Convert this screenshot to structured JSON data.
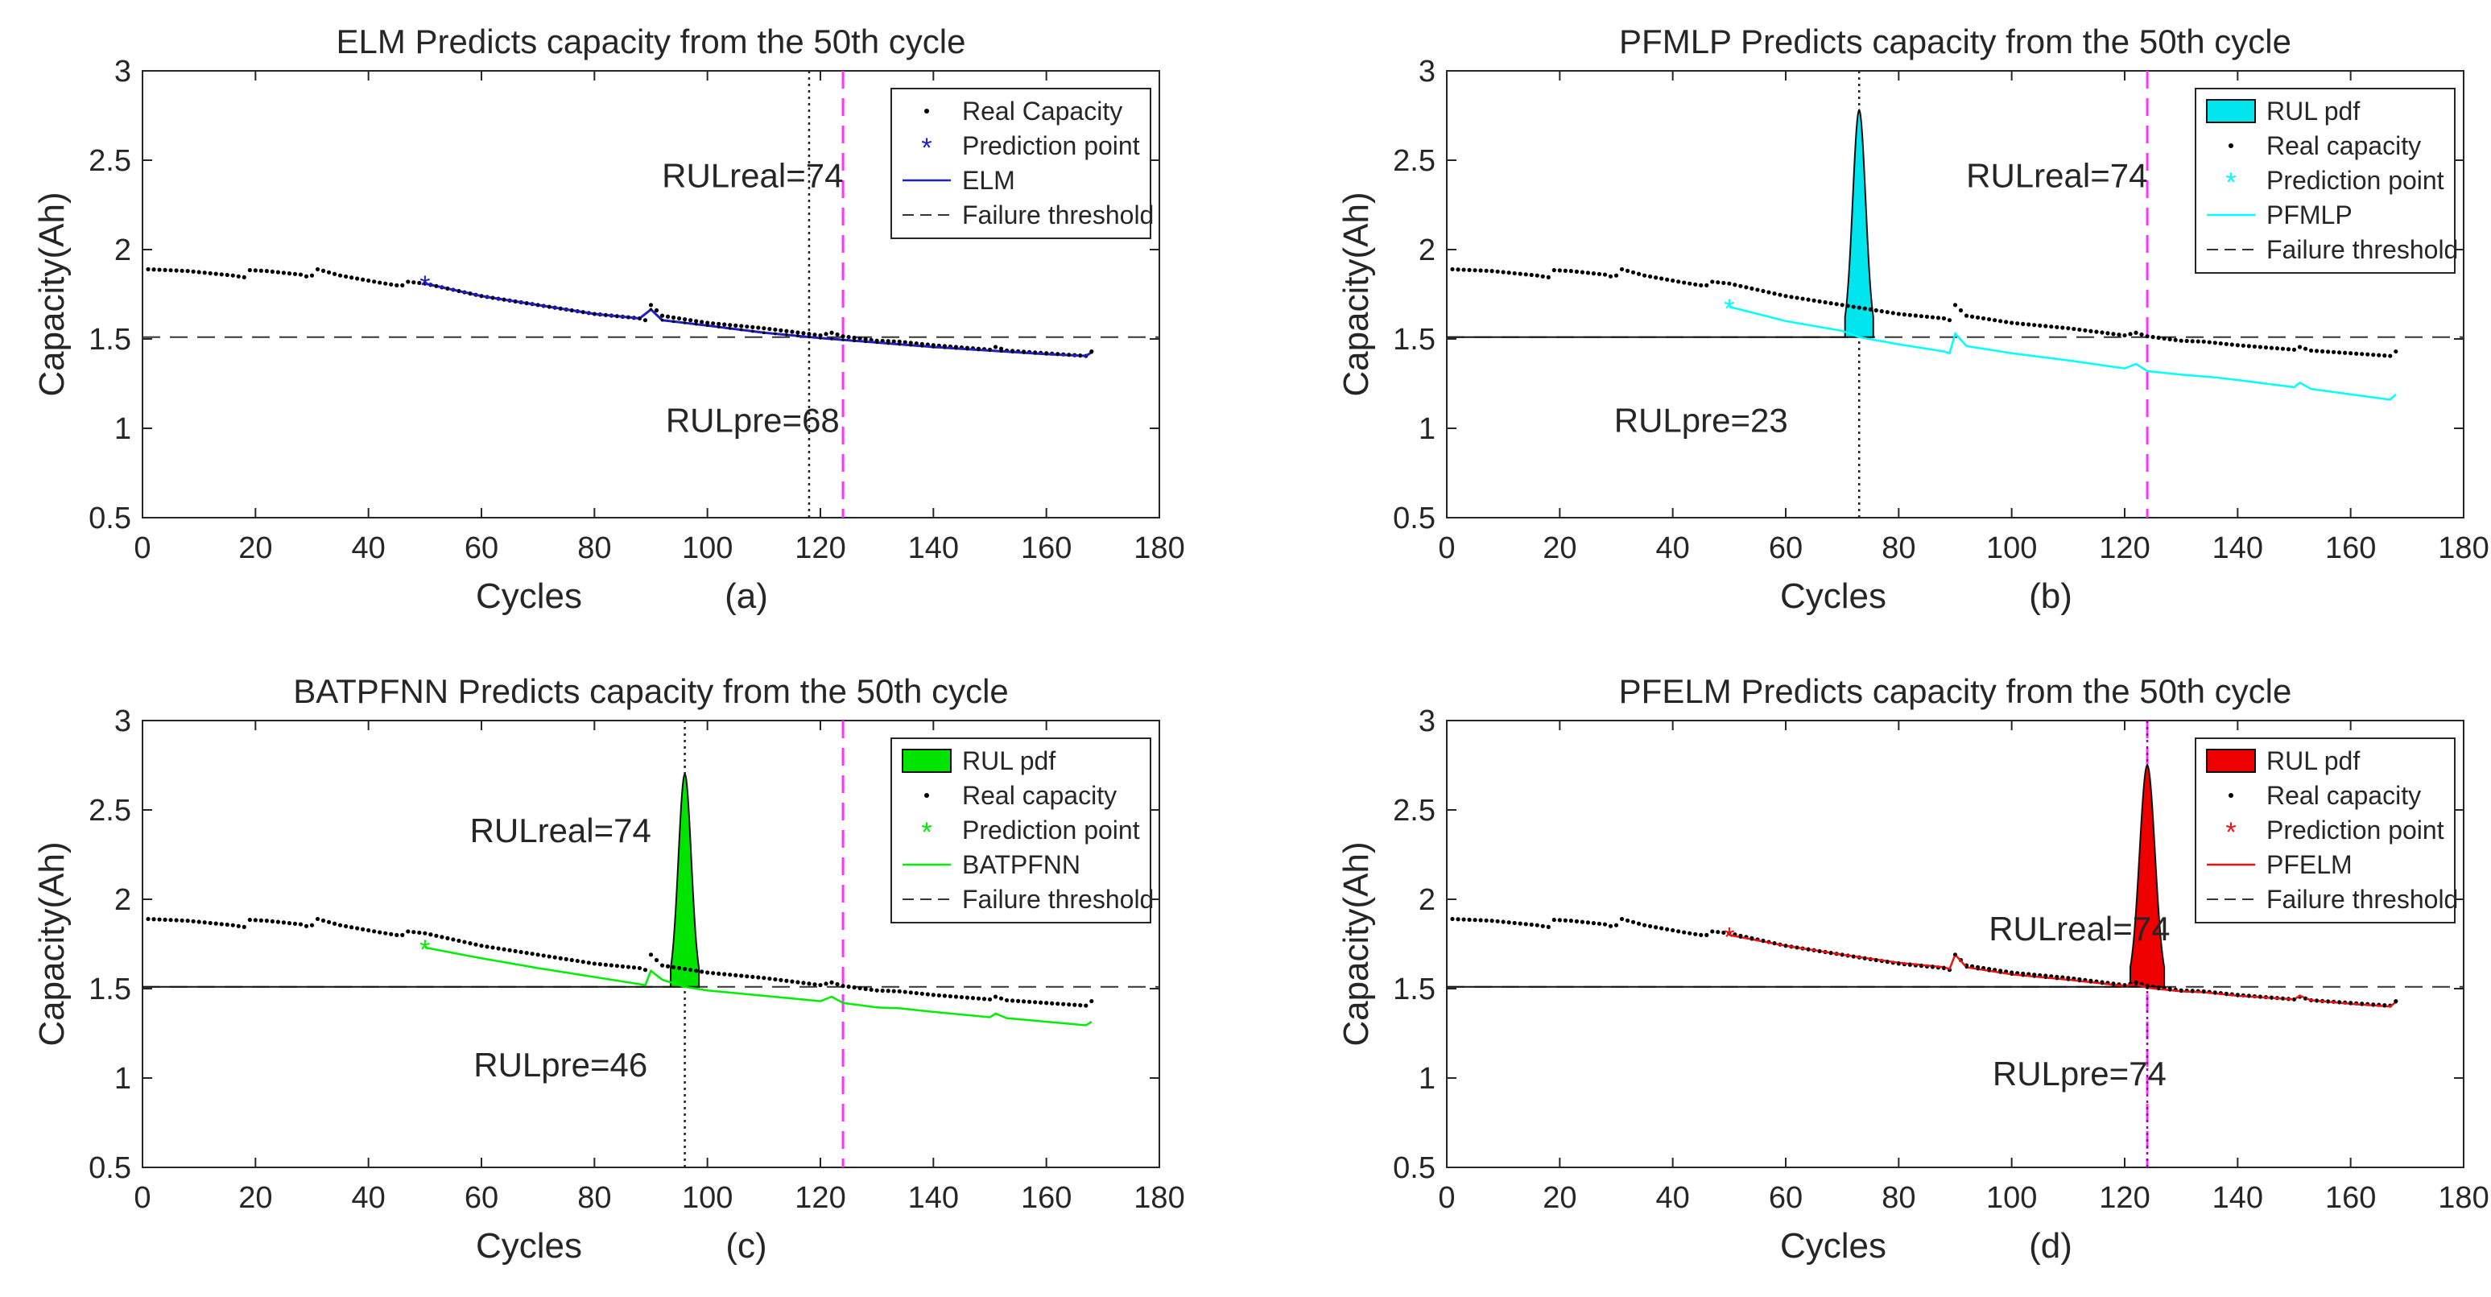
{
  "figure": {
    "panel_count": 4
  },
  "chart_data": [
    {
      "type": "line",
      "panel_label": "(a)",
      "title": "ELM Predicts capacity from the 50th cycle",
      "xlabel": "Cycles",
      "ylabel": "Capacity(Ah)",
      "xlim": [
        0,
        180
      ],
      "ylim": [
        0.5,
        3
      ],
      "xticks": [
        0,
        20,
        40,
        60,
        80,
        100,
        120,
        140,
        160,
        180
      ],
      "yticks": [
        0.5,
        1,
        1.5,
        2,
        2.5,
        3
      ],
      "xtick_labels": [
        "0",
        "20",
        "40",
        "60",
        "80",
        "100",
        "120",
        "140",
        "160",
        "180"
      ],
      "ytick_labels": [
        "0.5",
        "1",
        "1.5",
        "2",
        "2.5",
        "3"
      ],
      "grid": false,
      "prediction_start": 50,
      "failure_threshold": 1.51,
      "real_eol_cycle": 124,
      "predicted_eol_cycle": 118,
      "prediction_color": "#1f1fbf",
      "annotations": {
        "rul_real": "RULreal=74",
        "rul_pre": "RULpre=68"
      },
      "legend": {
        "location": "top-right",
        "entries": [
          "Real Capacity",
          "Prediction point",
          "ELM",
          "Failure threshold"
        ]
      },
      "prediction_anchors": [
        [
          50,
          1.81
        ],
        [
          60,
          1.74
        ],
        [
          70,
          1.69
        ],
        [
          80,
          1.64
        ],
        [
          88,
          1.615
        ],
        [
          90,
          1.665
        ],
        [
          92,
          1.605
        ],
        [
          100,
          1.575
        ],
        [
          110,
          1.535
        ],
        [
          120,
          1.505
        ],
        [
          130,
          1.48
        ],
        [
          140,
          1.455
        ],
        [
          150,
          1.435
        ],
        [
          160,
          1.415
        ],
        [
          167,
          1.405
        ],
        [
          168,
          1.425
        ]
      ],
      "pdf": null
    },
    {
      "type": "line",
      "panel_label": "(b)",
      "title": "PFMLP Predicts capacity from the 50th cycle",
      "xlabel": "Cycles",
      "ylabel": "Capacity(Ah)",
      "xlim": [
        0,
        180
      ],
      "ylim": [
        0.5,
        3
      ],
      "xticks": [
        0,
        20,
        40,
        60,
        80,
        100,
        120,
        140,
        160,
        180
      ],
      "yticks": [
        0.5,
        1,
        1.5,
        2,
        2.5,
        3
      ],
      "xtick_labels": [
        "0",
        "20",
        "40",
        "60",
        "80",
        "100",
        "120",
        "140",
        "160",
        "180"
      ],
      "ytick_labels": [
        "0.5",
        "1",
        "1.5",
        "2",
        "2.5",
        "3"
      ],
      "grid": false,
      "prediction_start": 50,
      "failure_threshold": 1.51,
      "real_eol_cycle": 124,
      "predicted_eol_cycle": 73,
      "prediction_color": "#00ffff",
      "annotations": {
        "rul_real": "RULreal=74",
        "rul_pre": "RULpre=23"
      },
      "legend": {
        "location": "top-right",
        "entries": [
          "RUL pdf",
          "Real capacity",
          "Prediction point",
          "PFMLP",
          "Failure threshold"
        ]
      },
      "prediction_anchors": [
        [
          50,
          1.68
        ],
        [
          60,
          1.6
        ],
        [
          70,
          1.545
        ],
        [
          73,
          1.51
        ],
        [
          80,
          1.47
        ],
        [
          88,
          1.43
        ],
        [
          89,
          1.42
        ],
        [
          90,
          1.53
        ],
        [
          92,
          1.46
        ],
        [
          100,
          1.42
        ],
        [
          110,
          1.38
        ],
        [
          120,
          1.335
        ],
        [
          122,
          1.36
        ],
        [
          124,
          1.32
        ],
        [
          130,
          1.3
        ],
        [
          134,
          1.29
        ],
        [
          136,
          1.285
        ],
        [
          140,
          1.27
        ],
        [
          150,
          1.23
        ],
        [
          151,
          1.255
        ],
        [
          153,
          1.22
        ],
        [
          160,
          1.19
        ],
        [
          167,
          1.16
        ],
        [
          168,
          1.19
        ]
      ],
      "pdf": {
        "center": 73,
        "half_width": 2.5,
        "peak": 2.78,
        "fill": "#00e5ee"
      }
    },
    {
      "type": "line",
      "panel_label": "(c)",
      "title": "BATPFNN Predicts capacity from the 50th cycle",
      "xlabel": "Cycles",
      "ylabel": "Capacity(Ah)",
      "xlim": [
        0,
        180
      ],
      "ylim": [
        0.5,
        3
      ],
      "xticks": [
        0,
        20,
        40,
        60,
        80,
        100,
        120,
        140,
        160,
        180
      ],
      "yticks": [
        0.5,
        1,
        1.5,
        2,
        2.5,
        3
      ],
      "xtick_labels": [
        "0",
        "20",
        "40",
        "60",
        "80",
        "100",
        "120",
        "140",
        "160",
        "180"
      ],
      "ytick_labels": [
        "0.5",
        "1",
        "1.5",
        "2",
        "2.5",
        "3"
      ],
      "grid": false,
      "prediction_start": 50,
      "failure_threshold": 1.51,
      "real_eol_cycle": 124,
      "predicted_eol_cycle": 96,
      "prediction_color": "#00ee00",
      "annotations": {
        "rul_real": "RULreal=74",
        "rul_pre": "RULpre=46"
      },
      "legend": {
        "location": "top-right",
        "entries": [
          "RUL pdf",
          "Real capacity",
          "Prediction point",
          "BATPFNN",
          "Failure threshold"
        ]
      },
      "prediction_anchors": [
        [
          50,
          1.73
        ],
        [
          60,
          1.67
        ],
        [
          70,
          1.615
        ],
        [
          80,
          1.565
        ],
        [
          88,
          1.525
        ],
        [
          89,
          1.52
        ],
        [
          90,
          1.6
        ],
        [
          92,
          1.55
        ],
        [
          96,
          1.51
        ],
        [
          100,
          1.49
        ],
        [
          110,
          1.46
        ],
        [
          120,
          1.43
        ],
        [
          122,
          1.455
        ],
        [
          124,
          1.42
        ],
        [
          130,
          1.395
        ],
        [
          134,
          1.39
        ],
        [
          140,
          1.37
        ],
        [
          150,
          1.34
        ],
        [
          151,
          1.36
        ],
        [
          153,
          1.335
        ],
        [
          160,
          1.315
        ],
        [
          167,
          1.295
        ],
        [
          168,
          1.315
        ]
      ],
      "pdf": {
        "center": 96,
        "half_width": 2.5,
        "peak": 2.7,
        "fill": "#00e400"
      }
    },
    {
      "type": "line",
      "panel_label": "(d)",
      "title": "PFELM Predicts capacity from the 50th cycle",
      "xlabel": "Cycles",
      "ylabel": "Capacity(Ah)",
      "xlim": [
        0,
        180
      ],
      "ylim": [
        0.5,
        3
      ],
      "xticks": [
        0,
        20,
        40,
        60,
        80,
        100,
        120,
        140,
        160,
        180
      ],
      "yticks": [
        0.5,
        1,
        1.5,
        2,
        2.5,
        3
      ],
      "xtick_labels": [
        "0",
        "20",
        "40",
        "60",
        "80",
        "100",
        "120",
        "140",
        "160",
        "180"
      ],
      "ytick_labels": [
        "0.5",
        "1",
        "1.5",
        "2",
        "2.5",
        "3"
      ],
      "grid": false,
      "prediction_start": 50,
      "failure_threshold": 1.51,
      "real_eol_cycle": 124,
      "predicted_eol_cycle": 124,
      "prediction_color": "#ee1111",
      "annotations": {
        "rul_real": "RULreal=74",
        "rul_pre": "RULpre=74"
      },
      "legend": {
        "location": "top-right",
        "entries": [
          "RUL pdf",
          "Real capacity",
          "Prediction point",
          "PFELM",
          "Failure threshold"
        ]
      },
      "prediction_anchors": [
        [
          50,
          1.8
        ],
        [
          60,
          1.74
        ],
        [
          70,
          1.69
        ],
        [
          80,
          1.645
        ],
        [
          88,
          1.62
        ],
        [
          89,
          1.61
        ],
        [
          90,
          1.69
        ],
        [
          92,
          1.62
        ],
        [
          100,
          1.58
        ],
        [
          110,
          1.55
        ],
        [
          120,
          1.515
        ],
        [
          122,
          1.525
        ],
        [
          124,
          1.505
        ],
        [
          130,
          1.485
        ],
        [
          134,
          1.48
        ],
        [
          140,
          1.46
        ],
        [
          150,
          1.44
        ],
        [
          151,
          1.46
        ],
        [
          153,
          1.435
        ],
        [
          160,
          1.415
        ],
        [
          167,
          1.4
        ],
        [
          168,
          1.425
        ]
      ],
      "pdf": {
        "center": 124,
        "half_width": 3,
        "peak": 2.75,
        "fill": "#ee0000"
      }
    }
  ],
  "real_capacity_anchors": [
    [
      1,
      1.89
    ],
    [
      8,
      1.88
    ],
    [
      16,
      1.855
    ],
    [
      18,
      1.845
    ],
    [
      19,
      1.885
    ],
    [
      22,
      1.88
    ],
    [
      28,
      1.86
    ],
    [
      29,
      1.85
    ],
    [
      30,
      1.855
    ],
    [
      31,
      1.89
    ],
    [
      35,
      1.855
    ],
    [
      42,
      1.815
    ],
    [
      45,
      1.8
    ],
    [
      46,
      1.8
    ],
    [
      47,
      1.82
    ],
    [
      50,
      1.81
    ],
    [
      60,
      1.74
    ],
    [
      70,
      1.69
    ],
    [
      80,
      1.64
    ],
    [
      88,
      1.615
    ],
    [
      89,
      1.605
    ],
    [
      90,
      1.69
    ],
    [
      92,
      1.63
    ],
    [
      100,
      1.59
    ],
    [
      110,
      1.56
    ],
    [
      120,
      1.52
    ],
    [
      122,
      1.535
    ],
    [
      124,
      1.515
    ],
    [
      130,
      1.49
    ],
    [
      134,
      1.485
    ],
    [
      140,
      1.465
    ],
    [
      150,
      1.44
    ],
    [
      151,
      1.455
    ],
    [
      153,
      1.435
    ],
    [
      160,
      1.42
    ],
    [
      167,
      1.405
    ],
    [
      168,
      1.43
    ]
  ]
}
